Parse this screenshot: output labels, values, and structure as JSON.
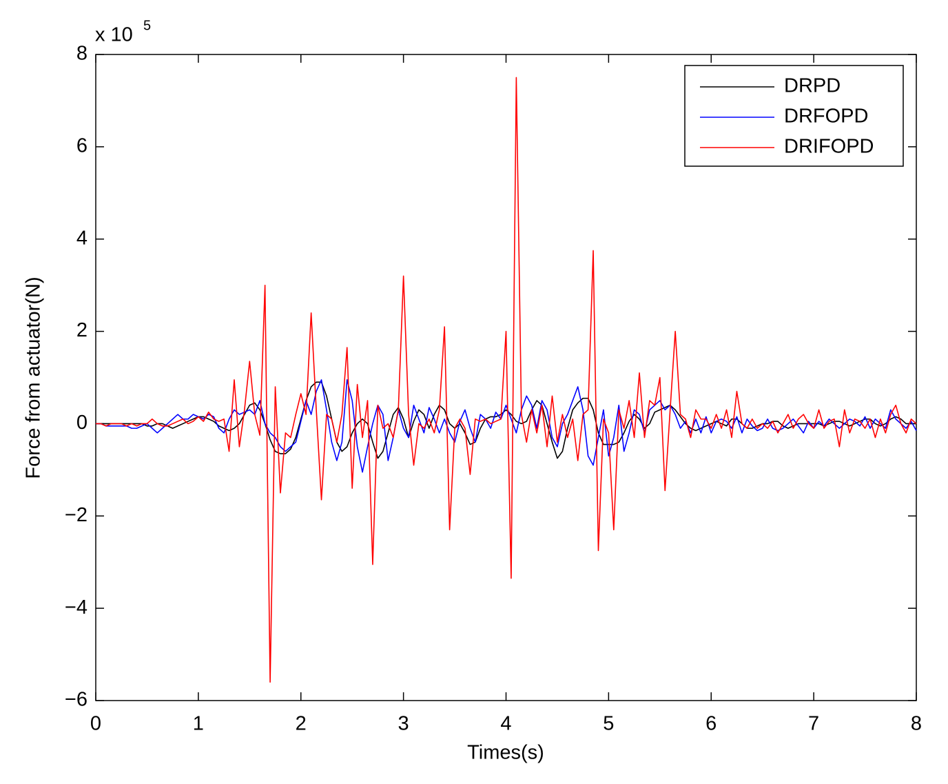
{
  "chart_data": {
    "type": "line",
    "x_label": "Times(s)",
    "y_label": "Force from actuator(N)",
    "y_multiplier": {
      "base": "x 10",
      "exponent": "5"
    },
    "xlim": [
      0,
      8
    ],
    "xticks": [
      0,
      1,
      2,
      3,
      4,
      5,
      6,
      7,
      8
    ],
    "ylim": [
      -6,
      8
    ],
    "yticks": [
      {
        "value": -6,
        "label": "−6"
      },
      {
        "value": -4,
        "label": "−4"
      },
      {
        "value": -2,
        "label": "−2"
      },
      0,
      2,
      4,
      6,
      8
    ],
    "legend": "upper right",
    "x": [
      0,
      0.05,
      0.1,
      0.15,
      0.2,
      0.25,
      0.3,
      0.35,
      0.4,
      0.45,
      0.5,
      0.55,
      0.6,
      0.65,
      0.7,
      0.75,
      0.8,
      0.85,
      0.9,
      0.95,
      1,
      1.05,
      1.1,
      1.15,
      1.2,
      1.25,
      1.3,
      1.35,
      1.4,
      1.45,
      1.5,
      1.55,
      1.6,
      1.65,
      1.7,
      1.75,
      1.8,
      1.85,
      1.9,
      1.95,
      2,
      2.05,
      2.1,
      2.15,
      2.2,
      2.25,
      2.3,
      2.35,
      2.4,
      2.45,
      2.5,
      2.55,
      2.6,
      2.65,
      2.7,
      2.75,
      2.8,
      2.85,
      2.9,
      2.95,
      3,
      3.05,
      3.1,
      3.15,
      3.2,
      3.25,
      3.3,
      3.35,
      3.4,
      3.45,
      3.5,
      3.55,
      3.6,
      3.65,
      3.7,
      3.75,
      3.8,
      3.85,
      3.9,
      3.95,
      4,
      4.05,
      4.1,
      4.15,
      4.2,
      4.25,
      4.3,
      4.35,
      4.4,
      4.45,
      4.5,
      4.55,
      4.6,
      4.65,
      4.7,
      4.75,
      4.8,
      4.85,
      4.9,
      4.95,
      5,
      5.05,
      5.1,
      5.15,
      5.2,
      5.25,
      5.3,
      5.35,
      5.4,
      5.45,
      5.5,
      5.55,
      5.6,
      5.65,
      5.7,
      5.75,
      5.8,
      5.85,
      5.9,
      5.95,
      6,
      6.05,
      6.1,
      6.15,
      6.2,
      6.25,
      6.3,
      6.35,
      6.4,
      6.45,
      6.5,
      6.55,
      6.6,
      6.65,
      6.7,
      6.75,
      6.8,
      6.85,
      6.9,
      6.95,
      7,
      7.05,
      7.1,
      7.15,
      7.2,
      7.25,
      7.3,
      7.35,
      7.4,
      7.45,
      7.5,
      7.55,
      7.6,
      7.65,
      7.7,
      7.75,
      7.8,
      7.85,
      7.9,
      7.95,
      8
    ],
    "series": [
      {
        "name": "DRPD",
        "color": "#000000",
        "values": [
          0,
          0,
          0,
          0,
          0,
          0,
          0,
          0,
          0,
          0,
          -0.05,
          -0.05,
          0,
          0,
          -0.05,
          -0.1,
          -0.05,
          0,
          0.05,
          0.1,
          0.15,
          0.15,
          0.1,
          0.05,
          -0.05,
          -0.1,
          -0.15,
          -0.1,
          0,
          0.2,
          0.4,
          0.45,
          0.3,
          0,
          -0.35,
          -0.6,
          -0.65,
          -0.65,
          -0.55,
          -0.3,
          0.1,
          0.5,
          0.8,
          0.9,
          0.9,
          0.6,
          0.1,
          -0.4,
          -0.6,
          -0.5,
          -0.2,
          0,
          0.1,
          0,
          -0.4,
          -0.75,
          -0.6,
          -0.2,
          0.2,
          0.35,
          0.1,
          -0.3,
          0.05,
          0.3,
          0.2,
          -0.1,
          0.2,
          0.4,
          0.3,
          0,
          -0.1,
          0,
          -0.2,
          -0.45,
          -0.4,
          -0.1,
          0.1,
          0.15,
          0.15,
          0.2,
          0.3,
          0.2,
          0.05,
          0,
          0.05,
          0.3,
          0.5,
          0.4,
          0,
          -0.4,
          -0.75,
          -0.6,
          -0.1,
          0.3,
          0.45,
          0.55,
          0.55,
          0.3,
          -0.2,
          -0.45,
          -0.45,
          -0.45,
          -0.4,
          -0.2,
          0.05,
          0.2,
          0.1,
          -0.1,
          0,
          0.25,
          0.3,
          0.35,
          0.4,
          0.3,
          0.15,
          0,
          -0.1,
          -0.15,
          -0.1,
          -0.05,
          0,
          0.05,
          0,
          -0.05,
          0.1,
          0.1,
          0,
          -0.1,
          -0.1,
          -0.05,
          0,
          0,
          0.05,
          0.05,
          -0.05,
          -0.1,
          -0.05,
          0,
          0,
          0,
          0,
          0,
          -0.05,
          0,
          0.05,
          0.05,
          0,
          -0.05,
          0,
          0.05,
          0.1,
          0.1,
          0,
          -0.05,
          0,
          0.1,
          0.15,
          0.1,
          0,
          0,
          0
        ]
      },
      {
        "name": "DRFOPD",
        "color": "#0000ff",
        "values": [
          0,
          0,
          -0.05,
          -0.05,
          -0.05,
          -0.05,
          -0.05,
          -0.1,
          -0.1,
          -0.05,
          0,
          -0.1,
          -0.2,
          -0.1,
          0,
          0.1,
          0.2,
          0.1,
          0.1,
          0.2,
          0.15,
          0.1,
          0.2,
          0.15,
          -0.1,
          -0.2,
          0.1,
          0.3,
          0.2,
          0.25,
          0.3,
          0.2,
          0.5,
          0,
          -0.2,
          -0.3,
          -0.5,
          -0.6,
          -0.5,
          -0.4,
          0.05,
          0.5,
          0.2,
          0.7,
          0.95,
          0.3,
          -0.4,
          -0.8,
          -0.4,
          0.95,
          0.5,
          -0.5,
          -1.05,
          -0.5,
          0,
          0.4,
          0.2,
          -0.8,
          -0.3,
          0.3,
          -0.1,
          -0.3,
          0.4,
          0.1,
          -0.2,
          0.35,
          0.1,
          -0.2,
          0.1,
          -0.2,
          -0.4,
          0.05,
          0.3,
          -0.1,
          -0.4,
          0.2,
          0.1,
          -0.1,
          0.25,
          0.1,
          0.4,
          0.1,
          -0.2,
          0.3,
          0.6,
          0.4,
          -0.1,
          0.5,
          0.3,
          -0.3,
          -0.5,
          0,
          0.2,
          0.5,
          0.8,
          0.3,
          -0.7,
          -0.9,
          -0.3,
          0.3,
          -0.7,
          -0.3,
          0.4,
          -0.6,
          -0.2,
          0.3,
          0.2,
          -0.2,
          0.3,
          0.4,
          0.5,
          0.3,
          0.4,
          0.2,
          -0.1,
          0.05,
          -0.2,
          0.1,
          -0.2,
          0.15,
          -0.2,
          0.05,
          0.1,
          0.05,
          -0.1,
          0.15,
          -0.2,
          0.1,
          -0.05,
          -0.15,
          -0.1,
          0.1,
          -0.1,
          -0.15,
          -0.1,
          0,
          0.1,
          -0.05,
          -0.2,
          0.05,
          -0.1,
          0.05,
          -0.05,
          0.1,
          0,
          -0.1,
          0,
          0.1,
          0.05,
          -0.05,
          0.15,
          -0.1,
          0.1,
          0,
          -0.1,
          0.3,
          0.1,
          0,
          -0.1,
          0.05,
          -0.15
        ]
      },
      {
        "name": "DRIFOPD",
        "color": "#ff0000",
        "values": [
          0,
          0,
          -0.05,
          0,
          0,
          0,
          -0.05,
          0,
          -0.05,
          0,
          0,
          0.1,
          0,
          -0.05,
          -0.05,
          0,
          0.05,
          0.1,
          0,
          0.05,
          0.15,
          0.05,
          0.25,
          0.1,
          0.05,
          0.1,
          -0.6,
          0.95,
          -0.5,
          0.3,
          1.35,
          0.2,
          -0.25,
          3.0,
          -5.6,
          0.8,
          -1.5,
          -0.2,
          -0.3,
          0.2,
          0.65,
          0.2,
          2.4,
          0.3,
          -1.65,
          0.2,
          0.1,
          -0.4,
          0.2,
          1.65,
          -1.4,
          0.85,
          -0.3,
          0.5,
          -3.05,
          0.4,
          -0.1,
          0,
          -0.3,
          0.3,
          3.2,
          0.2,
          -0.9,
          0,
          -0.1,
          0.1,
          -0.2,
          0.3,
          2.1,
          -2.3,
          -0.1,
          0.1,
          -0.1,
          -1.1,
          0.1,
          0.05,
          0.1,
          0,
          0.05,
          0.1,
          2.0,
          -3.35,
          7.5,
          0.2,
          -0.4,
          0.3,
          -0.2,
          0.4,
          -0.5,
          0.6,
          -0.4,
          0.2,
          -0.3,
          0.1,
          -0.8,
          0.2,
          0.3,
          3.75,
          -2.75,
          0.1,
          -0.2,
          -2.3,
          0.3,
          -0.1,
          0.5,
          -0.3,
          1.1,
          -0.3,
          0.5,
          0.4,
          1.0,
          -1.45,
          0.3,
          2.0,
          0.2,
          0.1,
          -0.3,
          0.3,
          0.1,
          0.1,
          -0.1,
          0.2,
          -0.1,
          0.3,
          -0.3,
          0.7,
          0,
          -0.1,
          0.1,
          -0.1,
          0,
          -0.1,
          0.05,
          -0.2,
          0,
          0.2,
          -0.1,
          0.1,
          0.2,
          0,
          -0.1,
          0.3,
          -0.1,
          0.05,
          0.1,
          -0.5,
          0.3,
          -0.2,
          0.1,
          0.05,
          -0.1,
          0.1,
          -0.3,
          0.1,
          -0.2,
          0.2,
          0.4,
          0,
          -0.2,
          0.1,
          0
        ]
      }
    ]
  }
}
